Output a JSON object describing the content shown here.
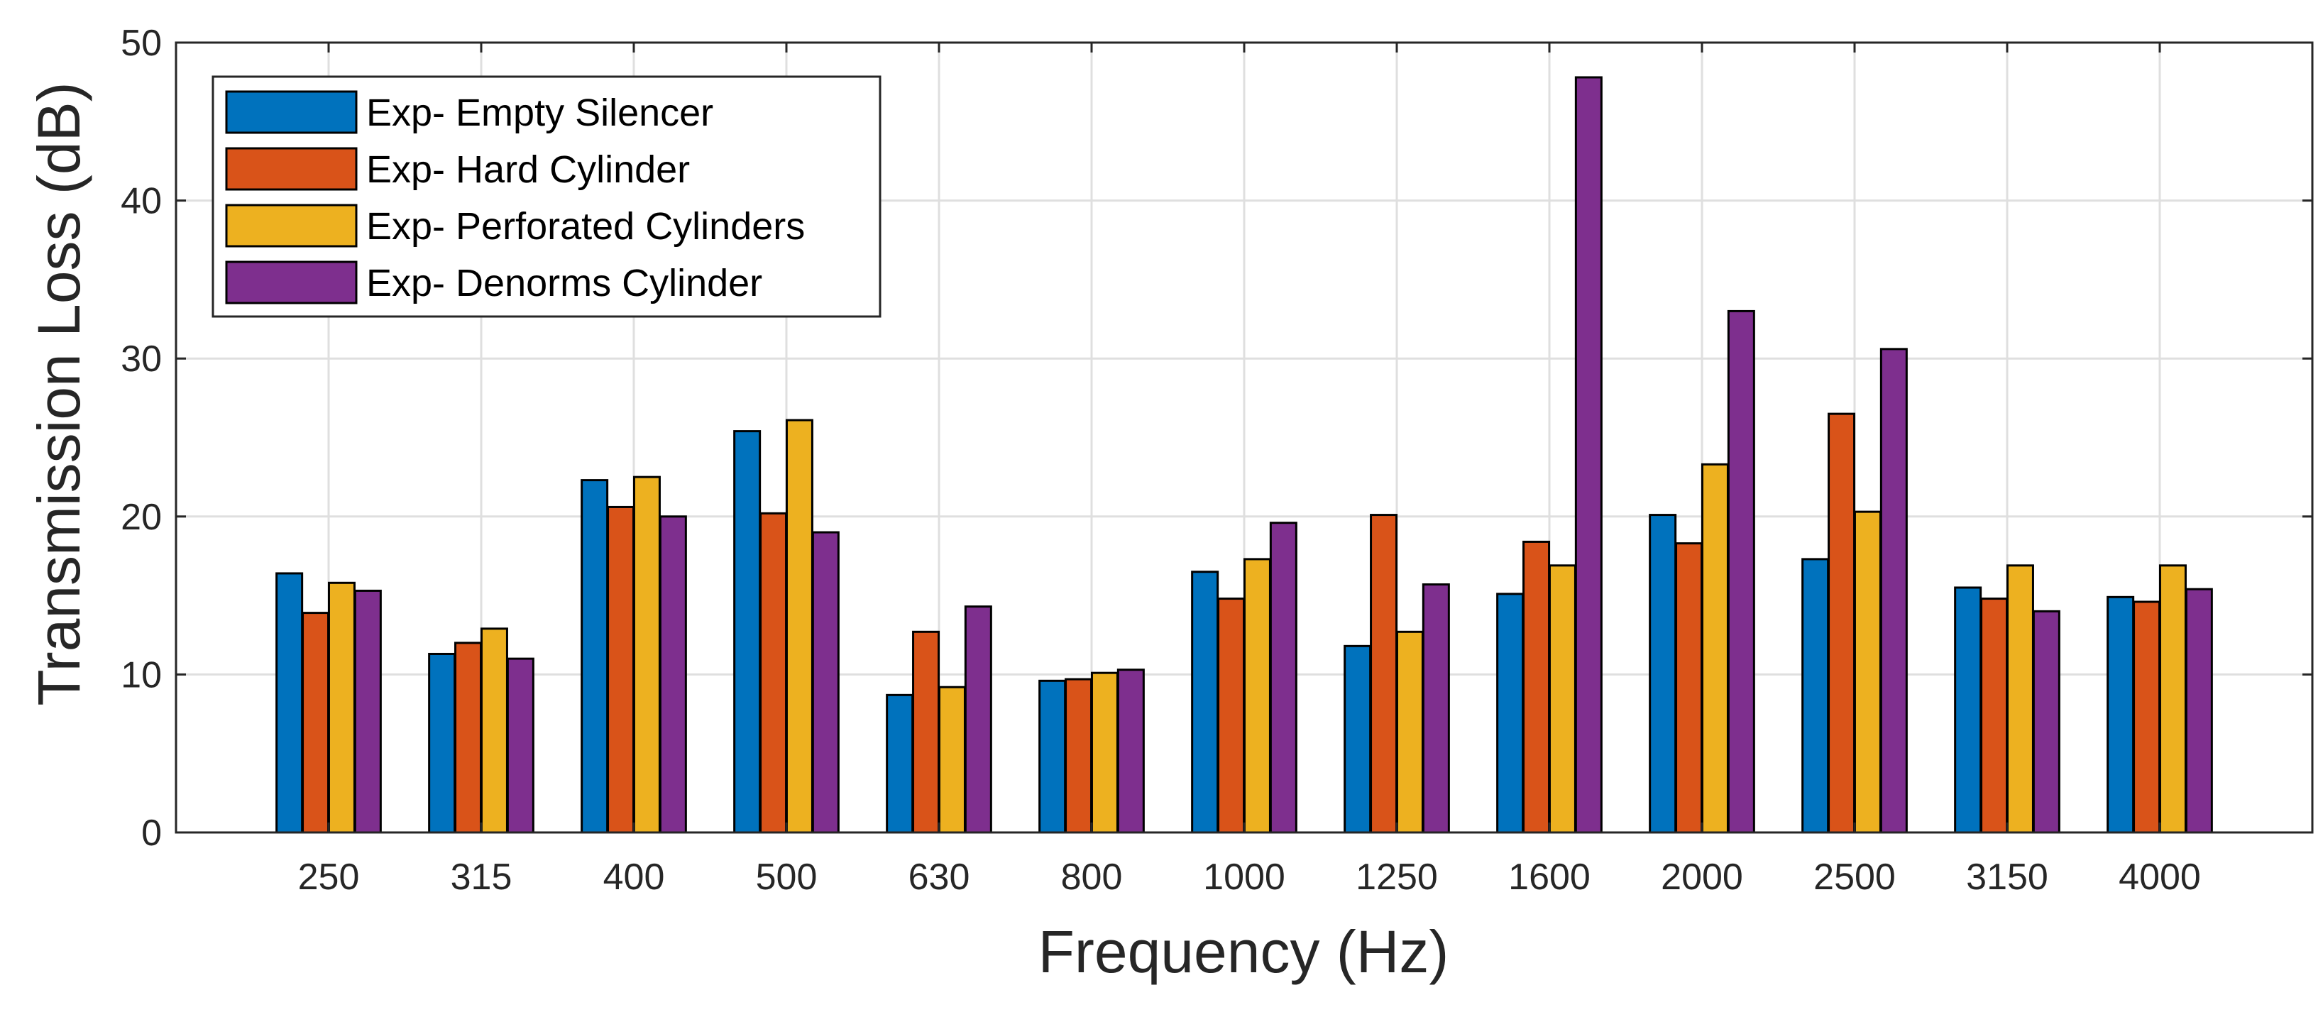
{
  "chart_data": {
    "type": "bar",
    "title": "",
    "xlabel": "Frequency (Hz)",
    "ylabel": "Transmission Loss (dB)",
    "ylim": [
      0,
      50
    ],
    "yticks": [
      0,
      10,
      20,
      30,
      40,
      50
    ],
    "grid": true,
    "legend_position": "top-left",
    "categories": [
      "250",
      "315",
      "400",
      "500",
      "630",
      "800",
      "1000",
      "1250",
      "1600",
      "2000",
      "2500",
      "3150",
      "4000"
    ],
    "series": [
      {
        "name": "Exp- Empty Silencer",
        "color": "#0072BD",
        "values": [
          16.4,
          11.3,
          22.3,
          25.4,
          8.7,
          9.6,
          16.5,
          11.8,
          15.1,
          20.1,
          17.3,
          15.5,
          14.9
        ]
      },
      {
        "name": "Exp- Hard Cylinder",
        "color": "#D95319",
        "values": [
          13.9,
          12.0,
          20.6,
          20.2,
          12.7,
          9.7,
          14.8,
          20.1,
          18.4,
          18.3,
          26.5,
          14.8,
          14.6
        ]
      },
      {
        "name": "Exp- Perforated Cylinders",
        "color": "#EDB120",
        "values": [
          15.8,
          12.9,
          22.5,
          26.1,
          9.2,
          10.1,
          17.3,
          12.7,
          16.9,
          23.3,
          20.3,
          16.9,
          16.9
        ]
      },
      {
        "name": "Exp- Denorms Cylinder",
        "color": "#7E2F8E",
        "values": [
          15.3,
          11.0,
          20.0,
          19.0,
          14.3,
          10.3,
          19.6,
          15.7,
          47.8,
          33.0,
          30.6,
          14.0,
          15.4
        ]
      }
    ]
  }
}
